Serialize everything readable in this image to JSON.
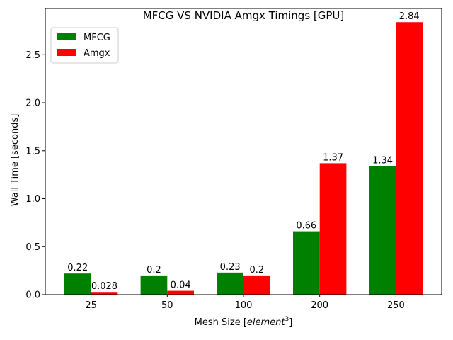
{
  "chart_data": {
    "type": "bar",
    "title": "MFCG VS NVIDIA Amgx Timings [GPU]",
    "xlabel_prefix": "Mesh Size [",
    "xlabel_var": "element",
    "xlabel_exp": "3",
    "xlabel_suffix": "]",
    "ylabel": "Wall Time [seconds]",
    "categories": [
      "25",
      "50",
      "100",
      "200",
      "250"
    ],
    "ylim": [
      0,
      2.982
    ],
    "yticks": [
      0.0,
      0.5,
      1.0,
      1.5,
      2.0,
      2.5
    ],
    "ytick_labels": [
      "0.0",
      "0.5",
      "1.0",
      "1.5",
      "2.0",
      "2.5"
    ],
    "grid": false,
    "legend_position": "top-left",
    "series": [
      {
        "name": "MFCG",
        "color": "#008000",
        "values": [
          0.22,
          0.2,
          0.23,
          0.66,
          1.34
        ],
        "value_labels": [
          "0.22",
          "0.2",
          "0.23",
          "0.66",
          "1.34"
        ]
      },
      {
        "name": "Amgx",
        "color": "#ff0000",
        "values": [
          0.028,
          0.04,
          0.2,
          1.37,
          2.84
        ],
        "value_labels": [
          "0.028",
          "0.04",
          "0.2",
          "1.37",
          "2.84"
        ]
      }
    ]
  }
}
